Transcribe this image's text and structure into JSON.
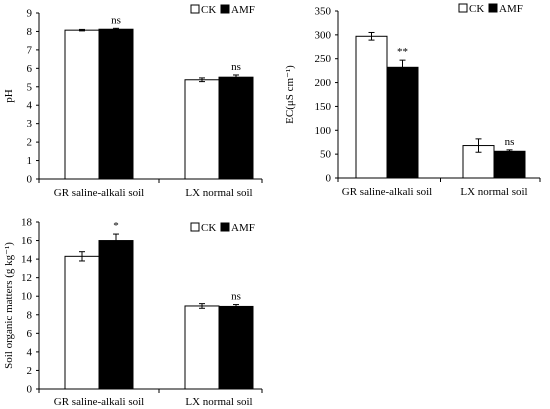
{
  "chart_data": [
    {
      "type": "bar",
      "ylabel": "pH",
      "categories": [
        "GR saline-alkali soil",
        "LX normal soil"
      ],
      "ylim": [
        0,
        9
      ],
      "yticks": [
        0,
        1,
        2,
        3,
        4,
        5,
        6,
        7,
        8,
        9
      ],
      "legend": "top-right",
      "grid": false,
      "series": [
        {
          "name": "CK",
          "color": "#ffffff",
          "values": [
            8.07,
            5.38
          ],
          "errors": [
            0.04,
            0.1
          ]
        },
        {
          "name": "AMF",
          "color": "#000000",
          "values": [
            8.12,
            5.52
          ],
          "errors": [
            0.05,
            0.12
          ]
        }
      ],
      "annotations": [
        "ns",
        "ns"
      ]
    },
    {
      "type": "bar",
      "ylabel": "EC(μS cm⁻¹)",
      "categories": [
        "GR saline-alkali soil",
        "LX normal soil"
      ],
      "ylim": [
        0,
        350
      ],
      "yticks": [
        0,
        50,
        100,
        150,
        200,
        250,
        300,
        350
      ],
      "legend": "top-right",
      "grid": false,
      "series": [
        {
          "name": "CK",
          "color": "#ffffff",
          "values": [
            297,
            68
          ],
          "errors": [
            8,
            14
          ]
        },
        {
          "name": "AMF",
          "color": "#000000",
          "values": [
            232,
            56
          ],
          "errors": [
            15,
            3
          ]
        }
      ],
      "annotations": [
        "**",
        "ns"
      ]
    },
    {
      "type": "bar",
      "ylabel": "Soil organic matters (g kg⁻¹)",
      "categories": [
        "GR saline-alkali soil",
        "LX normal soil"
      ],
      "ylim": [
        0,
        18
      ],
      "yticks": [
        0,
        2,
        4,
        6,
        8,
        10,
        12,
        14,
        16,
        18
      ],
      "legend": "top-right",
      "grid": false,
      "series": [
        {
          "name": "CK",
          "color": "#ffffff",
          "values": [
            14.3,
            8.95
          ],
          "errors": [
            0.5,
            0.25
          ]
        },
        {
          "name": "AMF",
          "color": "#000000",
          "values": [
            16.0,
            8.9
          ],
          "errors": [
            0.7,
            0.2
          ]
        }
      ],
      "annotations": [
        "*",
        "ns"
      ]
    }
  ]
}
